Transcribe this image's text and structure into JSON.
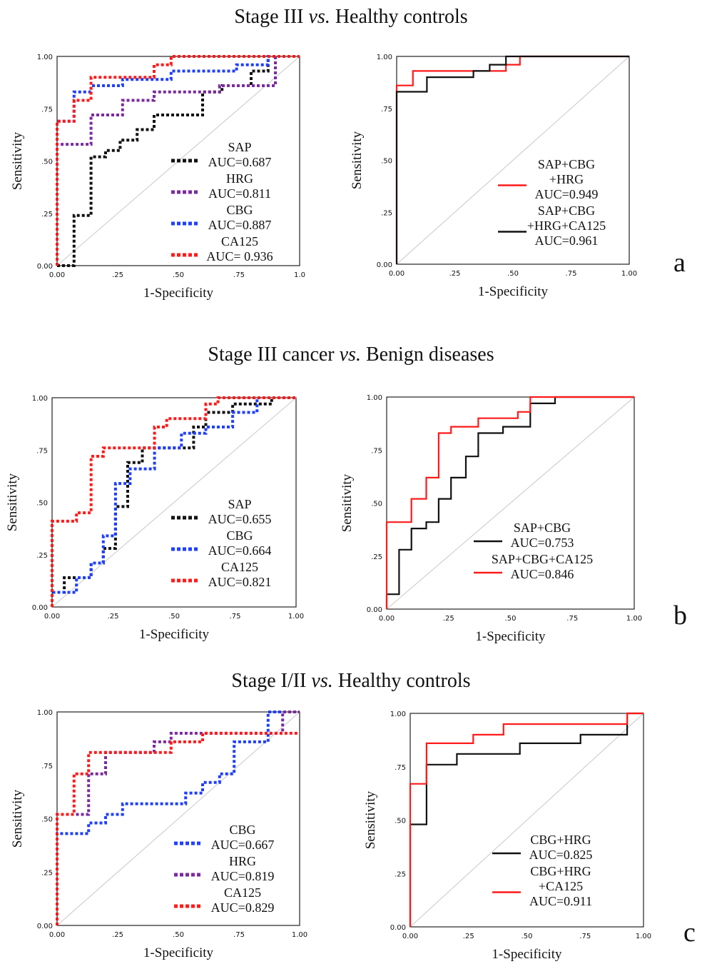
{
  "section_titles": [
    {
      "pre": "Stage III ",
      "em": "vs.",
      "post": " Healthy controls"
    },
    {
      "pre": "Stage III cancer ",
      "em": "vs.",
      "post": " Benign diseases"
    },
    {
      "pre": "Stage I/II ",
      "em": "vs.",
      "post": " Healthy controls"
    }
  ],
  "panel_letters": [
    "a",
    "b",
    "c"
  ],
  "colors": {
    "black": "#111111",
    "purple": "#7b2aa0",
    "blue": "#1f3fff",
    "red": "#ff1a1a",
    "diag": "#c8c8c8"
  },
  "chart_data": [
    {
      "type": "line",
      "xlabel": "1-Specificity",
      "ylabel": "Sensitivity",
      "xlim": [
        0,
        1
      ],
      "ylim": [
        0,
        1
      ],
      "x_ticks": [
        "0.00",
        ".25",
        ".50",
        ".75",
        "1.0"
      ],
      "y_ticks": [
        "0.00",
        ".25",
        ".50",
        ".75",
        "1.00"
      ],
      "series": [
        {
          "name": "SAP",
          "legend": [
            "SAP",
            "AUC=0.687"
          ],
          "color": "black",
          "dashed": true,
          "x": [
            0,
            0.07,
            0.07,
            0.14,
            0.14,
            0.2,
            0.2,
            0.26,
            0.26,
            0.33,
            0.33,
            0.4,
            0.4,
            0.6,
            0.6,
            0.68,
            0.68,
            0.8,
            0.8,
            0.87,
            0.87,
            1
          ],
          "y": [
            0,
            0,
            0.24,
            0.24,
            0.52,
            0.52,
            0.55,
            0.55,
            0.6,
            0.6,
            0.65,
            0.65,
            0.72,
            0.72,
            0.83,
            0.83,
            0.86,
            0.86,
            0.93,
            0.93,
            1,
            1
          ]
        },
        {
          "name": "HRG",
          "legend": [
            "HRG",
            "AUC=0.811"
          ],
          "color": "purple",
          "dashed": true,
          "x": [
            0,
            0,
            0.14,
            0.14,
            0.27,
            0.27,
            0.4,
            0.4,
            0.67,
            0.67,
            0.74,
            0.74,
            0.9,
            0.9,
            1
          ],
          "y": [
            0,
            0.58,
            0.58,
            0.72,
            0.72,
            0.79,
            0.79,
            0.83,
            0.83,
            0.86,
            0.86,
            0.86,
            0.86,
            1,
            1
          ]
        },
        {
          "name": "CBG",
          "legend": [
            "CBG",
            "AUC=0.887"
          ],
          "color": "blue",
          "dashed": true,
          "x": [
            0,
            0,
            0.07,
            0.07,
            0.14,
            0.14,
            0.27,
            0.27,
            0.47,
            0.47,
            0.74,
            0.74,
            0.87,
            0.87,
            1
          ],
          "y": [
            0,
            0.69,
            0.69,
            0.83,
            0.83,
            0.86,
            0.86,
            0.89,
            0.89,
            0.93,
            0.93,
            0.96,
            0.96,
            1,
            1
          ]
        },
        {
          "name": "CA125",
          "legend": [
            "CA125",
            "AUC= 0.936"
          ],
          "color": "red",
          "dashed": true,
          "x": [
            0,
            0,
            0.07,
            0.07,
            0.14,
            0.14,
            0.4,
            0.4,
            0.47,
            0.47,
            1
          ],
          "y": [
            0,
            0.69,
            0.69,
            0.79,
            0.79,
            0.9,
            0.9,
            0.96,
            0.96,
            1,
            1
          ]
        }
      ]
    },
    {
      "type": "line",
      "xlabel": "1-Specificity",
      "ylabel": "Sensitivity",
      "xlim": [
        0,
        1
      ],
      "ylim": [
        0,
        1
      ],
      "x_ticks": [
        "0.00",
        ".25",
        ".50",
        ".75",
        "1.00"
      ],
      "y_ticks": [
        "0.00",
        ".25",
        ".50",
        ".75",
        "1.00"
      ],
      "series": [
        {
          "name": "SAP+CBG +HRG",
          "legend": [
            "SAP+CBG",
            "+HRG",
            "AUC=0.949"
          ],
          "color": "red",
          "dashed": false,
          "x": [
            0,
            0,
            0.07,
            0.07,
            0.4,
            0.4,
            0.47,
            0.47,
            0.53,
            0.53,
            1
          ],
          "y": [
            0,
            0.86,
            0.86,
            0.93,
            0.93,
            0.93,
            0.93,
            0.96,
            0.96,
            1,
            1
          ]
        },
        {
          "name": "SAP+CBG +HRG+CA125",
          "legend": [
            "SAP+CBG",
            "+HRG+CA125",
            "AUC=0.961"
          ],
          "color": "black",
          "dashed": false,
          "x": [
            0,
            0,
            0.13,
            0.13,
            0.33,
            0.33,
            0.4,
            0.4,
            0.47,
            0.47,
            1
          ],
          "y": [
            0,
            0.83,
            0.83,
            0.9,
            0.9,
            0.93,
            0.93,
            0.96,
            0.96,
            1,
            1
          ]
        }
      ]
    },
    {
      "type": "line",
      "xlabel": "1-Specificity",
      "ylabel": "Sensitivity",
      "xlim": [
        0,
        1
      ],
      "ylim": [
        0,
        1
      ],
      "x_ticks": [
        "0.00",
        ".25",
        ".50",
        ".75",
        "1.00"
      ],
      "y_ticks": [
        "0.00",
        ".25",
        ".50",
        ".75",
        "1.00"
      ],
      "series": [
        {
          "name": "SAP",
          "legend": [
            "SAP",
            "AUC=0.655"
          ],
          "color": "black",
          "dashed": true,
          "x": [
            0,
            0,
            0.05,
            0.05,
            0.16,
            0.16,
            0.21,
            0.21,
            0.26,
            0.26,
            0.31,
            0.31,
            0.37,
            0.37,
            0.47,
            0.47,
            0.58,
            0.58,
            0.63,
            0.63,
            0.74,
            0.74,
            0.9,
            0.9,
            1
          ],
          "y": [
            0,
            0.07,
            0.07,
            0.14,
            0.14,
            0.21,
            0.21,
            0.28,
            0.28,
            0.48,
            0.48,
            0.69,
            0.69,
            0.76,
            0.76,
            0.76,
            0.76,
            0.86,
            0.86,
            0.93,
            0.93,
            0.97,
            0.97,
            1,
            1
          ]
        },
        {
          "name": "CBG",
          "legend": [
            "CBG",
            "AUC=0.664"
          ],
          "color": "blue",
          "dashed": true,
          "x": [
            0,
            0,
            0.1,
            0.1,
            0.16,
            0.16,
            0.21,
            0.21,
            0.26,
            0.26,
            0.32,
            0.32,
            0.42,
            0.42,
            0.53,
            0.53,
            0.63,
            0.63,
            0.74,
            0.74,
            0.84,
            0.84,
            1
          ],
          "y": [
            0,
            0.07,
            0.07,
            0.14,
            0.14,
            0.21,
            0.21,
            0.34,
            0.34,
            0.59,
            0.59,
            0.66,
            0.66,
            0.76,
            0.76,
            0.83,
            0.83,
            0.86,
            0.86,
            0.93,
            0.93,
            1,
            1
          ]
        },
        {
          "name": "CA125",
          "legend": [
            "CA125",
            "AUC=0.821"
          ],
          "color": "red",
          "dashed": true,
          "x": [
            0,
            0,
            0.1,
            0.1,
            0.16,
            0.16,
            0.21,
            0.21,
            0.42,
            0.42,
            0.47,
            0.47,
            0.63,
            0.63,
            0.68,
            0.68,
            1
          ],
          "y": [
            0,
            0.41,
            0.41,
            0.45,
            0.45,
            0.72,
            0.72,
            0.76,
            0.76,
            0.86,
            0.86,
            0.9,
            0.9,
            0.97,
            0.97,
            1,
            1
          ]
        }
      ]
    },
    {
      "type": "line",
      "xlabel": "1-Specificity",
      "ylabel": "Sensitivity",
      "xlim": [
        0,
        1
      ],
      "ylim": [
        0,
        1
      ],
      "x_ticks": [
        "0.00",
        ".25",
        ".50",
        ".75",
        "1.00"
      ],
      "y_ticks": [
        "0.00",
        ".25",
        ".50",
        ".75",
        "1.00"
      ],
      "series": [
        {
          "name": "SAP+CBG",
          "legend": [
            "SAP+CBG",
            "AUC=0.753"
          ],
          "color": "black",
          "dashed": false,
          "x": [
            0,
            0,
            0.05,
            0.05,
            0.1,
            0.1,
            0.16,
            0.16,
            0.21,
            0.21,
            0.26,
            0.26,
            0.32,
            0.32,
            0.37,
            0.37,
            0.47,
            0.47,
            0.58,
            0.58,
            0.68,
            0.68,
            1
          ],
          "y": [
            0,
            0.07,
            0.07,
            0.28,
            0.28,
            0.38,
            0.38,
            0.41,
            0.41,
            0.52,
            0.52,
            0.62,
            0.62,
            0.72,
            0.72,
            0.83,
            0.83,
            0.86,
            0.86,
            0.97,
            0.97,
            1,
            1
          ]
        },
        {
          "name": "SAP+CBG+CA125",
          "legend": [
            "SAP+CBG+CA125",
            "AUC=0.846"
          ],
          "color": "red",
          "dashed": false,
          "x": [
            0,
            0,
            0.1,
            0.1,
            0.16,
            0.16,
            0.21,
            0.21,
            0.26,
            0.26,
            0.37,
            0.37,
            0.53,
            0.53,
            0.58,
            0.58,
            1
          ],
          "y": [
            0,
            0.41,
            0.41,
            0.52,
            0.52,
            0.62,
            0.62,
            0.83,
            0.83,
            0.86,
            0.86,
            0.9,
            0.9,
            0.93,
            0.93,
            1,
            1
          ]
        }
      ]
    },
    {
      "type": "line",
      "xlabel": "1-Specificity",
      "ylabel": "Sensitivity",
      "xlim": [
        0,
        1
      ],
      "ylim": [
        0,
        1
      ],
      "x_ticks": [
        "0.00",
        ".25",
        ".50",
        ".75",
        "1.00"
      ],
      "y_ticks": [
        "0.00",
        ".25",
        ".50",
        ".75",
        "1.00"
      ],
      "series": [
        {
          "name": "CBG",
          "legend": [
            "CBG",
            "AUC=0.667"
          ],
          "color": "blue",
          "dashed": true,
          "x": [
            0,
            0,
            0.13,
            0.13,
            0.2,
            0.2,
            0.27,
            0.27,
            0.53,
            0.53,
            0.6,
            0.6,
            0.67,
            0.67,
            0.73,
            0.73,
            0.87,
            0.87,
            1
          ],
          "y": [
            0,
            0.43,
            0.43,
            0.48,
            0.48,
            0.52,
            0.52,
            0.57,
            0.57,
            0.62,
            0.62,
            0.67,
            0.67,
            0.71,
            0.71,
            0.86,
            0.86,
            1,
            1
          ]
        },
        {
          "name": "HRG",
          "legend": [
            "HRG",
            "AUC=0.819"
          ],
          "color": "purple",
          "dashed": true,
          "x": [
            0,
            0,
            0.07,
            0.07,
            0.13,
            0.13,
            0.2,
            0.2,
            0.4,
            0.4,
            0.47,
            0.47,
            0.93,
            0.93,
            1
          ],
          "y": [
            0,
            0.52,
            0.52,
            0.52,
            0.52,
            0.71,
            0.71,
            0.81,
            0.81,
            0.86,
            0.86,
            0.9,
            0.9,
            1,
            1
          ]
        },
        {
          "name": "CA125",
          "legend": [
            "CA125",
            "AUC=0.829"
          ],
          "color": "red",
          "dashed": true,
          "x": [
            0,
            0,
            0.07,
            0.07,
            0.13,
            0.13,
            0.47,
            0.47,
            0.6,
            0.6,
            1
          ],
          "y": [
            0,
            0.52,
            0.52,
            0.71,
            0.71,
            0.81,
            0.81,
            0.86,
            0.86,
            0.9,
            0.9
          ]
        }
      ]
    },
    {
      "type": "line",
      "xlabel": "1-Specificity",
      "ylabel": "Sensitivity",
      "xlim": [
        0,
        1
      ],
      "ylim": [
        0,
        1
      ],
      "x_ticks": [
        "0.00",
        ".25",
        ".50",
        ".75",
        "1.00"
      ],
      "y_ticks": [
        "0.00",
        ".25",
        ".50",
        ".75",
        "1.00"
      ],
      "series": [
        {
          "name": "CBG+HRG",
          "legend": [
            "CBG+HRG",
            "AUC=0.825"
          ],
          "color": "black",
          "dashed": false,
          "x": [
            0,
            0,
            0.07,
            0.07,
            0.2,
            0.2,
            0.47,
            0.47,
            0.73,
            0.73,
            0.93,
            0.93,
            1
          ],
          "y": [
            0,
            0.48,
            0.48,
            0.76,
            0.76,
            0.81,
            0.81,
            0.86,
            0.86,
            0.9,
            0.9,
            1,
            1
          ]
        },
        {
          "name": "CBG+HRG +CA125",
          "legend": [
            "CBG+HRG",
            "+CA125",
            "AUC=0.911"
          ],
          "color": "red",
          "dashed": false,
          "x": [
            0,
            0,
            0.07,
            0.07,
            0.27,
            0.27,
            0.4,
            0.4,
            0.93,
            0.93,
            1
          ],
          "y": [
            0,
            0.67,
            0.67,
            0.86,
            0.86,
            0.9,
            0.9,
            0.95,
            0.95,
            1,
            1
          ]
        }
      ]
    }
  ]
}
